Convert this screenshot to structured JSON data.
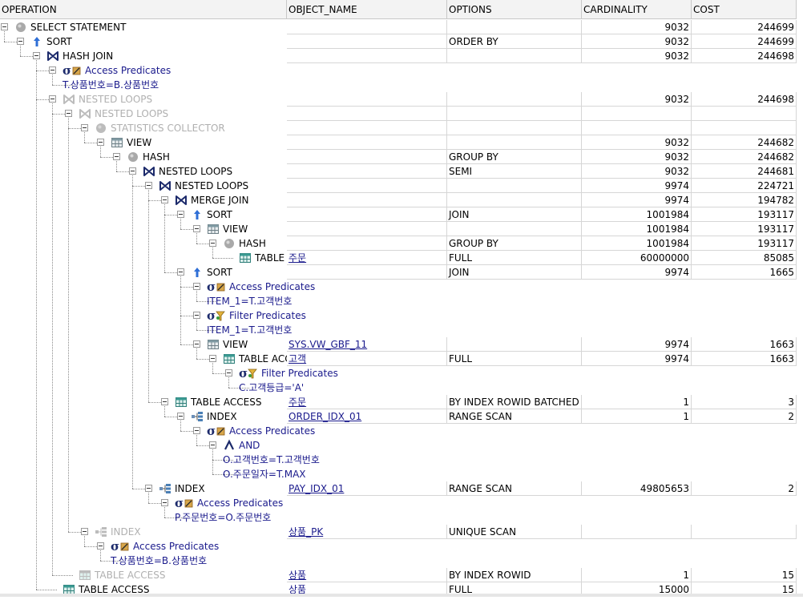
{
  "columns": [
    {
      "key": "operation",
      "label": "OPERATION"
    },
    {
      "key": "object_name",
      "label": "OBJECT_NAME"
    },
    {
      "key": "options",
      "label": "OPTIONS"
    },
    {
      "key": "cardinality",
      "label": "CARDINALITY"
    },
    {
      "key": "cost",
      "label": "COST"
    }
  ],
  "rows": [
    {
      "level": 0,
      "type": "op",
      "icon": "statement-circle-icon",
      "label": "SELECT STATEMENT",
      "object": "",
      "options": "",
      "cardinality": "9032",
      "cost": "244699"
    },
    {
      "level": 1,
      "type": "op",
      "icon": "sort-arrow-icon",
      "label": "SORT",
      "object": "",
      "options": "ORDER BY",
      "cardinality": "9032",
      "cost": "244699"
    },
    {
      "level": 2,
      "type": "op",
      "icon": "join-bowtie-icon",
      "label": "HASH JOIN",
      "object": "",
      "options": "",
      "cardinality": "9032",
      "cost": "244698"
    },
    {
      "level": 3,
      "type": "pred",
      "icon": "access-predicate-icon",
      "label": "Access Predicates"
    },
    {
      "level": 4,
      "type": "predval",
      "label": "T.상품번호=B.상품번호"
    },
    {
      "level": 3,
      "type": "op",
      "disabled": true,
      "icon": "join-bowtie-icon",
      "label": "NESTED LOOPS",
      "object": "",
      "options": "",
      "cardinality": "9032",
      "cost": "244698"
    },
    {
      "level": 4,
      "type": "op",
      "disabled": true,
      "icon": "join-bowtie-icon",
      "label": "NESTED LOOPS",
      "object": "",
      "options": "",
      "cardinality": "",
      "cost": ""
    },
    {
      "level": 5,
      "type": "op",
      "disabled": true,
      "icon": "statement-circle-icon",
      "label": "STATISTICS COLLECTOR",
      "object": "",
      "options": "",
      "cardinality": "",
      "cost": ""
    },
    {
      "level": 6,
      "type": "op",
      "icon": "view-grid-icon",
      "label": "VIEW",
      "object": "",
      "options": "",
      "cardinality": "9032",
      "cost": "244682"
    },
    {
      "level": 7,
      "type": "op",
      "icon": "statement-circle-icon",
      "label": "HASH",
      "object": "",
      "options": "GROUP BY",
      "cardinality": "9032",
      "cost": "244682"
    },
    {
      "level": 8,
      "type": "op",
      "icon": "join-bowtie-icon",
      "label": "NESTED LOOPS",
      "object": "",
      "options": "SEMI",
      "cardinality": "9032",
      "cost": "244681"
    },
    {
      "level": 9,
      "type": "op",
      "icon": "join-bowtie-icon",
      "label": "NESTED LOOPS",
      "object": "",
      "options": "",
      "cardinality": "9974",
      "cost": "224721"
    },
    {
      "level": 10,
      "type": "op",
      "icon": "join-bowtie-icon",
      "label": "MERGE JOIN",
      "object": "",
      "options": "",
      "cardinality": "9974",
      "cost": "194782"
    },
    {
      "level": 11,
      "type": "op",
      "icon": "sort-arrow-icon",
      "label": "SORT",
      "object": "",
      "options": "JOIN",
      "cardinality": "1001984",
      "cost": "193117"
    },
    {
      "level": 12,
      "type": "op",
      "icon": "view-grid-icon",
      "label": "VIEW",
      "object": "",
      "options": "",
      "cardinality": "1001984",
      "cost": "193117"
    },
    {
      "level": 13,
      "type": "op",
      "icon": "statement-circle-icon",
      "label": "HASH",
      "object": "",
      "options": "GROUP BY",
      "cardinality": "1001984",
      "cost": "193117"
    },
    {
      "level": 14,
      "type": "op",
      "icon": "table-grid-icon",
      "label": "TABLE ACCESS",
      "object": "주문",
      "options": "FULL",
      "cardinality": "60000000",
      "cost": "85085"
    },
    {
      "level": 11,
      "type": "op",
      "icon": "sort-arrow-icon",
      "label": "SORT",
      "object": "",
      "options": "JOIN",
      "cardinality": "9974",
      "cost": "1665"
    },
    {
      "level": 12,
      "type": "pred",
      "icon": "access-predicate-icon",
      "label": "Access Predicates"
    },
    {
      "level": 13,
      "type": "predval",
      "label": "ITEM_1=T.고객번호"
    },
    {
      "level": 12,
      "type": "pred",
      "icon": "filter-predicate-icon",
      "label": "Filter Predicates"
    },
    {
      "level": 13,
      "type": "predval",
      "label": "ITEM_1=T.고객번호"
    },
    {
      "level": 12,
      "type": "op",
      "icon": "view-grid-icon",
      "label": "VIEW",
      "object": "SYS.VW_GBF_11",
      "options": "",
      "cardinality": "9974",
      "cost": "1663"
    },
    {
      "level": 13,
      "type": "op",
      "icon": "table-grid-icon",
      "label": "TABLE ACCESS",
      "object": "고객",
      "options": "FULL",
      "cardinality": "9974",
      "cost": "1663"
    },
    {
      "level": 14,
      "type": "pred",
      "icon": "filter-predicate-icon",
      "label": "Filter Predicates"
    },
    {
      "level": 15,
      "type": "predval",
      "label": "C.고객등급='A'"
    },
    {
      "level": 10,
      "type": "op",
      "icon": "table-grid-icon",
      "label": "TABLE ACCESS",
      "object": "주문",
      "options": "BY INDEX ROWID BATCHED",
      "cardinality": "1",
      "cost": "3"
    },
    {
      "level": 11,
      "type": "op",
      "icon": "index-icon",
      "label": "INDEX",
      "object": "ORDER_IDX_01",
      "options": "RANGE SCAN",
      "cardinality": "1",
      "cost": "2"
    },
    {
      "level": 12,
      "type": "pred",
      "icon": "access-predicate-icon",
      "label": "Access Predicates"
    },
    {
      "level": 13,
      "type": "op",
      "icon": "and-caret-icon",
      "label": "AND",
      "pred": true
    },
    {
      "level": 14,
      "type": "predval",
      "label": "O.고객번호=T.고객번호"
    },
    {
      "level": 14,
      "type": "predval",
      "label": "O.주문일자=T.MAX"
    },
    {
      "level": 9,
      "type": "op",
      "icon": "index-icon",
      "label": "INDEX",
      "object": "PAY_IDX_01",
      "options": "RANGE SCAN",
      "cardinality": "49805653",
      "cost": "2"
    },
    {
      "level": 10,
      "type": "pred",
      "icon": "access-predicate-icon",
      "label": "Access Predicates"
    },
    {
      "level": 11,
      "type": "predval",
      "label": "P.주문번호=O.주문번호"
    },
    {
      "level": 5,
      "type": "op",
      "disabled": true,
      "icon": "index-icon",
      "label": "INDEX",
      "object": "상품_PK",
      "options": "UNIQUE SCAN",
      "cardinality": "",
      "cost": ""
    },
    {
      "level": 6,
      "type": "pred",
      "icon": "access-predicate-icon",
      "label": "Access Predicates"
    },
    {
      "level": 7,
      "type": "predval",
      "label": "T.상품번호=B.상품번호"
    },
    {
      "level": 4,
      "type": "op",
      "disabled": true,
      "icon": "table-grid-icon",
      "label": "TABLE ACCESS",
      "object": "상품",
      "options": "BY INDEX ROWID",
      "cardinality": "1",
      "cost": "15"
    },
    {
      "level": 3,
      "type": "op",
      "icon": "table-grid-icon",
      "label": "TABLE ACCESS",
      "object": "상품",
      "options": "FULL",
      "cardinality": "15000",
      "cost": "15"
    }
  ]
}
